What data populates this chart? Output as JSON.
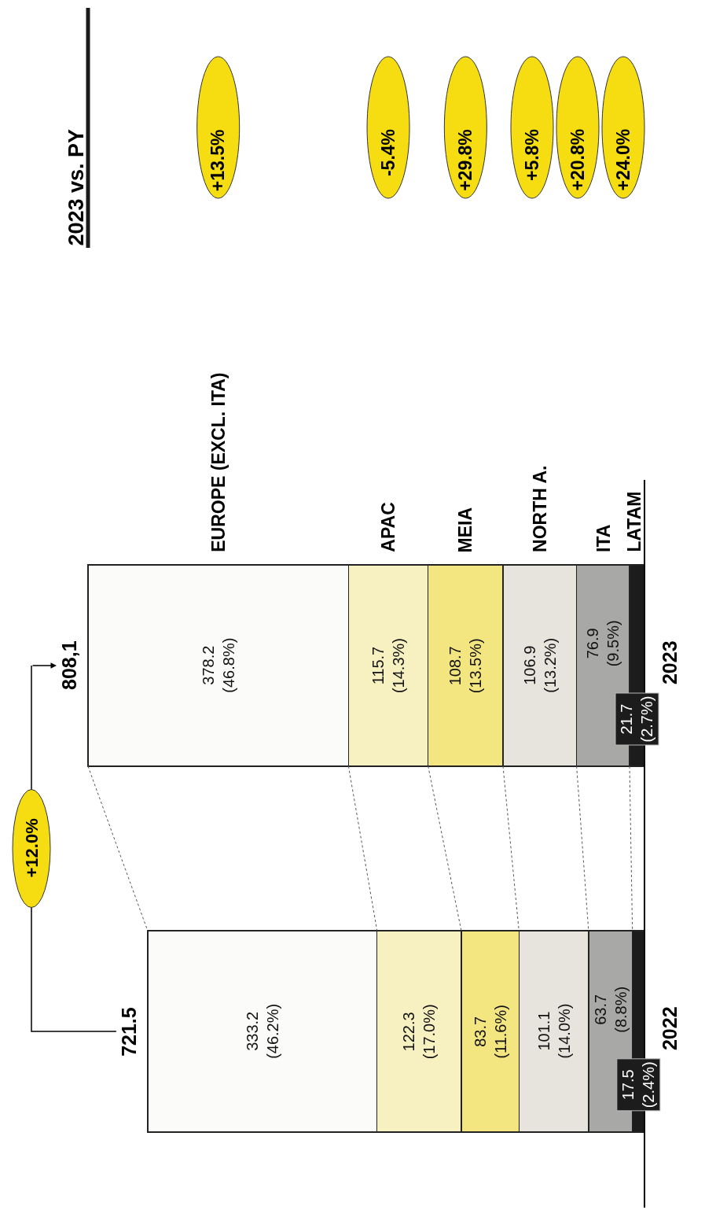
{
  "chart_data": {
    "type": "bar",
    "stacked": true,
    "orientation": "horizontal",
    "categories": [
      "2023",
      "2022"
    ],
    "series": [
      {
        "name": "LATAM",
        "color": "#1c1c1c",
        "values": [
          21.7,
          17.5
        ],
        "value_labels": [
          "21.7\n(2.7%)",
          "17.5\n(2.4%)"
        ]
      },
      {
        "name": "ITA",
        "color": "#a8a9a7",
        "values": [
          76.9,
          63.7
        ],
        "value_labels": [
          "76.9\n(9.5%)",
          "63.7\n(8.8%)"
        ]
      },
      {
        "name": "NORTH A.",
        "color": "#e6e4dc",
        "values": [
          106.9,
          101.1
        ],
        "value_labels": [
          "106.9\n(13.2%)",
          "101.1\n(14.0%)"
        ]
      },
      {
        "name": "MEIA",
        "color": "#f3e680",
        "values": [
          108.7,
          83.7
        ],
        "value_labels": [
          "108.7\n(13.5%)",
          "83.7\n(11.6%)"
        ]
      },
      {
        "name": "APAC",
        "color": "#f7f0c0",
        "values": [
          115.7,
          122.3
        ],
        "value_labels": [
          "115.7\n(14.3%)",
          "122.3\n(17.0%)"
        ]
      },
      {
        "name": "EUROPE (EXCL. ITA)",
        "color": "#fbfcfa",
        "values": [
          378.2,
          333.2
        ],
        "value_labels": [
          "378.2\n(46.8%)",
          "333.2\n(46.2%)"
        ]
      }
    ],
    "totals": [
      "808,1",
      "721.5"
    ],
    "annotations": [
      "+12.0%",
      "2023 vs. PY",
      "+24.0%",
      "+20.8%",
      "+5.8%",
      "+29.8%",
      "-5.4%",
      "+13.5%"
    ]
  }
}
